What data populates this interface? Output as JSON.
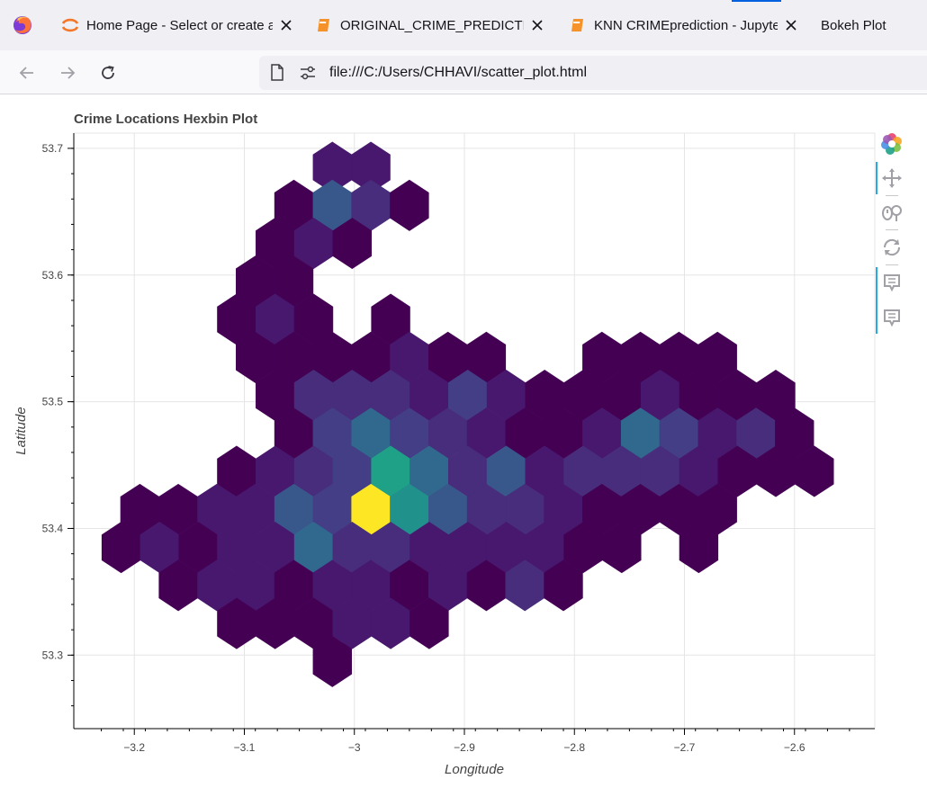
{
  "browser": {
    "tabs": [
      {
        "label": "Home Page - Select or create a",
        "icon": "jupyter-icon",
        "closable": true
      },
      {
        "label": "ORIGINAL_CRIME_PREDICTION",
        "icon": "notebook-icon",
        "closable": true
      },
      {
        "label": "KNN CRIMEprediction - Jupyter",
        "icon": "notebook-icon",
        "closable": true
      },
      {
        "label": "Bokeh Plot",
        "active": true
      }
    ],
    "url": "file:///C:/Users/CHHAVI/scatter_plot.html"
  },
  "plot": {
    "title": "Crime Locations Hexbin Plot",
    "toolbar": [
      "bokeh-logo-icon",
      "pan-tool-icon",
      "wheel-zoom-tool-icon",
      "reset-tool-icon",
      "hover-tool-icon",
      "hover-tool-icon"
    ]
  },
  "chart_data": {
    "type": "hexbin",
    "title": "Crime Locations Hexbin Plot",
    "xlabel": "Longitude",
    "ylabel": "Latitude",
    "xlim": [
      -3.255,
      -2.527
    ],
    "ylim": [
      53.242,
      53.712
    ],
    "x_ticks": [
      -3.2,
      -3.1,
      -3,
      -2.9,
      -2.8,
      -2.7,
      -2.6
    ],
    "x_tick_labels": [
      "−3.2",
      "−3.1",
      "−3",
      "−2.9",
      "−2.8",
      "−2.7",
      "−2.6"
    ],
    "y_ticks": [
      53.3,
      53.4,
      53.5,
      53.6,
      53.7
    ],
    "y_tick_labels": [
      "53.3",
      "53.4",
      "53.5",
      "53.6",
      "53.7"
    ],
    "grid": true,
    "palette": "Viridis256",
    "colors": {
      "dark_purple": "#440154",
      "purple": "#47186e",
      "violet": "#472d7b",
      "indigo": "#433e85",
      "blue": "#38588c",
      "slate": "#31688e",
      "teal": "#21918c",
      "green_teal": "#1fa187",
      "yellow": "#fde725"
    },
    "bins": [
      {
        "x": -3.02,
        "y": 53.685,
        "c": 0.05
      },
      {
        "x": -2.985,
        "y": 53.685,
        "c": 0.05
      },
      {
        "x": -3.055,
        "y": 53.655,
        "c": 0.0
      },
      {
        "x": -3.02,
        "y": 53.655,
        "c": 0.28
      },
      {
        "x": -2.985,
        "y": 53.655,
        "c": 0.12
      },
      {
        "x": -2.95,
        "y": 53.655,
        "c": 0.0
      },
      {
        "x": -3.072,
        "y": 53.625,
        "c": 0.0
      },
      {
        "x": -3.037,
        "y": 53.625,
        "c": 0.05
      },
      {
        "x": -3.002,
        "y": 53.625,
        "c": 0.0
      },
      {
        "x": -3.09,
        "y": 53.595,
        "c": 0.0
      },
      {
        "x": -3.055,
        "y": 53.595,
        "c": 0.0
      },
      {
        "x": -3.107,
        "y": 53.565,
        "c": 0.0
      },
      {
        "x": -3.072,
        "y": 53.565,
        "c": 0.05
      },
      {
        "x": -3.037,
        "y": 53.565,
        "c": 0.0
      },
      {
        "x": -2.967,
        "y": 53.565,
        "c": 0.0
      },
      {
        "x": -3.09,
        "y": 53.535,
        "c": 0.0
      },
      {
        "x": -3.055,
        "y": 53.535,
        "c": 0.0
      },
      {
        "x": -3.02,
        "y": 53.535,
        "c": 0.0
      },
      {
        "x": -2.985,
        "y": 53.535,
        "c": 0.0
      },
      {
        "x": -2.95,
        "y": 53.535,
        "c": 0.05
      },
      {
        "x": -2.915,
        "y": 53.535,
        "c": 0.0
      },
      {
        "x": -2.88,
        "y": 53.535,
        "c": 0.0
      },
      {
        "x": -2.775,
        "y": 53.535,
        "c": 0.0
      },
      {
        "x": -2.74,
        "y": 53.535,
        "c": 0.0
      },
      {
        "x": -2.705,
        "y": 53.535,
        "c": 0.0
      },
      {
        "x": -2.67,
        "y": 53.535,
        "c": 0.0
      },
      {
        "x": -3.072,
        "y": 53.505,
        "c": 0.0
      },
      {
        "x": -3.037,
        "y": 53.505,
        "c": 0.12
      },
      {
        "x": -3.002,
        "y": 53.505,
        "c": 0.12
      },
      {
        "x": -2.967,
        "y": 53.505,
        "c": 0.12
      },
      {
        "x": -2.932,
        "y": 53.505,
        "c": 0.05
      },
      {
        "x": -2.897,
        "y": 53.505,
        "c": 0.2
      },
      {
        "x": -2.862,
        "y": 53.505,
        "c": 0.05
      },
      {
        "x": -2.827,
        "y": 53.505,
        "c": 0.0
      },
      {
        "x": -2.792,
        "y": 53.505,
        "c": 0.0
      },
      {
        "x": -2.757,
        "y": 53.505,
        "c": 0.0
      },
      {
        "x": -2.722,
        "y": 53.505,
        "c": 0.05
      },
      {
        "x": -2.687,
        "y": 53.505,
        "c": 0.0
      },
      {
        "x": -2.652,
        "y": 53.505,
        "c": 0.0
      },
      {
        "x": -2.617,
        "y": 53.505,
        "c": 0.0
      },
      {
        "x": -3.055,
        "y": 53.475,
        "c": 0.0
      },
      {
        "x": -3.02,
        "y": 53.475,
        "c": 0.2
      },
      {
        "x": -2.985,
        "y": 53.475,
        "c": 0.35
      },
      {
        "x": -2.95,
        "y": 53.475,
        "c": 0.2
      },
      {
        "x": -2.915,
        "y": 53.475,
        "c": 0.12
      },
      {
        "x": -2.88,
        "y": 53.475,
        "c": 0.05
      },
      {
        "x": -2.845,
        "y": 53.475,
        "c": 0.0
      },
      {
        "x": -2.81,
        "y": 53.475,
        "c": 0.0
      },
      {
        "x": -2.775,
        "y": 53.475,
        "c": 0.05
      },
      {
        "x": -2.74,
        "y": 53.475,
        "c": 0.35
      },
      {
        "x": -2.705,
        "y": 53.475,
        "c": 0.2
      },
      {
        "x": -2.67,
        "y": 53.475,
        "c": 0.05
      },
      {
        "x": -2.635,
        "y": 53.475,
        "c": 0.12
      },
      {
        "x": -2.6,
        "y": 53.475,
        "c": 0.0
      },
      {
        "x": -3.107,
        "y": 53.445,
        "c": 0.0
      },
      {
        "x": -3.072,
        "y": 53.445,
        "c": 0.05
      },
      {
        "x": -3.037,
        "y": 53.445,
        "c": 0.12
      },
      {
        "x": -3.002,
        "y": 53.445,
        "c": 0.2
      },
      {
        "x": -2.967,
        "y": 53.445,
        "c": 0.55
      },
      {
        "x": -2.932,
        "y": 53.445,
        "c": 0.35
      },
      {
        "x": -2.897,
        "y": 53.445,
        "c": 0.12
      },
      {
        "x": -2.862,
        "y": 53.445,
        "c": 0.28
      },
      {
        "x": -2.827,
        "y": 53.445,
        "c": 0.05
      },
      {
        "x": -2.792,
        "y": 53.445,
        "c": 0.12
      },
      {
        "x": -2.757,
        "y": 53.445,
        "c": 0.12
      },
      {
        "x": -2.722,
        "y": 53.445,
        "c": 0.12
      },
      {
        "x": -2.687,
        "y": 53.445,
        "c": 0.05
      },
      {
        "x": -2.652,
        "y": 53.445,
        "c": 0.0
      },
      {
        "x": -2.617,
        "y": 53.445,
        "c": 0.0
      },
      {
        "x": -2.582,
        "y": 53.445,
        "c": 0.0
      },
      {
        "x": -3.195,
        "y": 53.415,
        "c": 0.0
      },
      {
        "x": -3.16,
        "y": 53.415,
        "c": 0.0
      },
      {
        "x": -3.125,
        "y": 53.415,
        "c": 0.05
      },
      {
        "x": -3.09,
        "y": 53.415,
        "c": 0.05
      },
      {
        "x": -3.055,
        "y": 53.415,
        "c": 0.28
      },
      {
        "x": -3.02,
        "y": 53.415,
        "c": 0.2
      },
      {
        "x": -2.985,
        "y": 53.415,
        "c": 1.0
      },
      {
        "x": -2.95,
        "y": 53.415,
        "c": 0.5
      },
      {
        "x": -2.915,
        "y": 53.415,
        "c": 0.28
      },
      {
        "x": -2.88,
        "y": 53.415,
        "c": 0.12
      },
      {
        "x": -2.845,
        "y": 53.415,
        "c": 0.12
      },
      {
        "x": -2.81,
        "y": 53.415,
        "c": 0.05
      },
      {
        "x": -2.775,
        "y": 53.415,
        "c": 0.0
      },
      {
        "x": -2.74,
        "y": 53.415,
        "c": 0.0
      },
      {
        "x": -2.705,
        "y": 53.415,
        "c": 0.0
      },
      {
        "x": -2.67,
        "y": 53.415,
        "c": 0.0
      },
      {
        "x": -3.212,
        "y": 53.385,
        "c": 0.0
      },
      {
        "x": -3.177,
        "y": 53.385,
        "c": 0.05
      },
      {
        "x": -3.142,
        "y": 53.385,
        "c": 0.0
      },
      {
        "x": -3.107,
        "y": 53.385,
        "c": 0.05
      },
      {
        "x": -3.072,
        "y": 53.385,
        "c": 0.05
      },
      {
        "x": -3.037,
        "y": 53.385,
        "c": 0.35
      },
      {
        "x": -3.002,
        "y": 53.385,
        "c": 0.12
      },
      {
        "x": -2.967,
        "y": 53.385,
        "c": 0.12
      },
      {
        "x": -2.932,
        "y": 53.385,
        "c": 0.05
      },
      {
        "x": -2.897,
        "y": 53.385,
        "c": 0.05
      },
      {
        "x": -2.862,
        "y": 53.385,
        "c": 0.05
      },
      {
        "x": -2.827,
        "y": 53.385,
        "c": 0.05
      },
      {
        "x": -2.792,
        "y": 53.385,
        "c": 0.0
      },
      {
        "x": -2.757,
        "y": 53.385,
        "c": 0.0
      },
      {
        "x": -2.687,
        "y": 53.385,
        "c": 0.0
      },
      {
        "x": -3.16,
        "y": 53.355,
        "c": 0.0
      },
      {
        "x": -3.125,
        "y": 53.355,
        "c": 0.05
      },
      {
        "x": -3.09,
        "y": 53.355,
        "c": 0.05
      },
      {
        "x": -3.055,
        "y": 53.355,
        "c": 0.0
      },
      {
        "x": -3.02,
        "y": 53.355,
        "c": 0.05
      },
      {
        "x": -2.985,
        "y": 53.355,
        "c": 0.05
      },
      {
        "x": -2.95,
        "y": 53.355,
        "c": 0.0
      },
      {
        "x": -2.915,
        "y": 53.355,
        "c": 0.05
      },
      {
        "x": -2.88,
        "y": 53.355,
        "c": 0.0
      },
      {
        "x": -2.845,
        "y": 53.355,
        "c": 0.12
      },
      {
        "x": -2.81,
        "y": 53.355,
        "c": 0.0
      },
      {
        "x": -3.107,
        "y": 53.325,
        "c": 0.0
      },
      {
        "x": -3.072,
        "y": 53.325,
        "c": 0.0
      },
      {
        "x": -3.037,
        "y": 53.325,
        "c": 0.0
      },
      {
        "x": -3.002,
        "y": 53.325,
        "c": 0.05
      },
      {
        "x": -2.967,
        "y": 53.325,
        "c": 0.05
      },
      {
        "x": -2.932,
        "y": 53.325,
        "c": 0.0
      },
      {
        "x": -3.02,
        "y": 53.295,
        "c": 0.0
      }
    ]
  }
}
